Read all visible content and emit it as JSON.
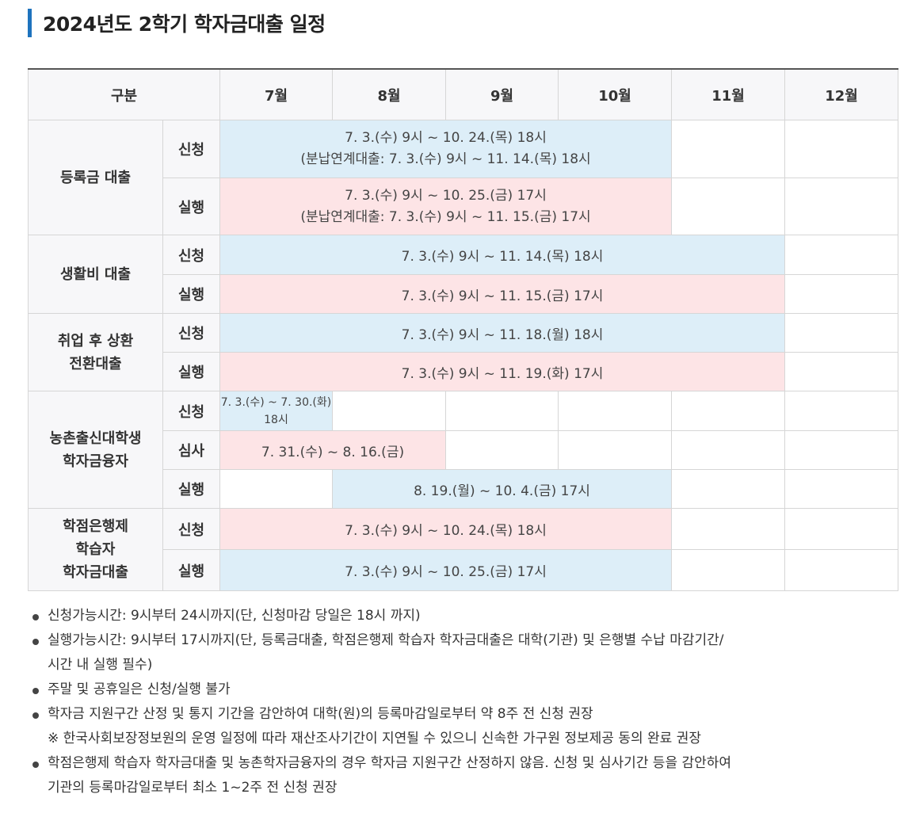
{
  "title": "2024년도 2학기 학자금대출 일정",
  "table": {
    "header": {
      "category": "구분",
      "months": [
        "7월",
        "8월",
        "9월",
        "10월",
        "11월",
        "12월"
      ]
    },
    "groups": [
      {
        "name_lines": [
          "등록금 대출"
        ],
        "rows": [
          {
            "type": "신청",
            "lines": [
              "7. 3.(수) 9시 ~ 10. 24.(목) 18시",
              "(분납연계대출: 7. 3.(수) 9시 ~ 11. 14.(목) 18시"
            ]
          },
          {
            "type": "실행",
            "lines": [
              "7. 3.(수) 9시 ~ 10. 25.(금) 17시",
              "(분납연계대출: 7. 3.(수) 9시 ~ 11. 15.(금) 17시"
            ]
          }
        ]
      },
      {
        "name_lines": [
          "생활비 대출"
        ],
        "rows": [
          {
            "type": "신청",
            "lines": [
              "7. 3.(수) 9시 ~ 11. 14.(목) 18시"
            ]
          },
          {
            "type": "실행",
            "lines": [
              "7. 3.(수) 9시 ~ 11. 15.(금) 17시"
            ]
          }
        ]
      },
      {
        "name_lines": [
          "취업 후 상환",
          "전환대출"
        ],
        "rows": [
          {
            "type": "신청",
            "lines": [
              "7. 3.(수) 9시 ~ 11. 18.(월) 18시"
            ]
          },
          {
            "type": "실행",
            "lines": [
              "7. 3.(수) 9시 ~ 11. 19.(화) 17시"
            ]
          }
        ]
      },
      {
        "name_lines": [
          "농촌출신대학생",
          "학자금융자"
        ],
        "rows": [
          {
            "type": "신청",
            "lines": [
              "7. 3.(수) ~ 7. 30.(화)",
              "18시"
            ]
          },
          {
            "type": "심사",
            "lines": [
              "7. 31.(수) ~ 8. 16.(금)"
            ]
          },
          {
            "type": "실행",
            "lines": [
              "8. 19.(월) ~ 10. 4.(금) 17시"
            ]
          }
        ]
      },
      {
        "name_lines": [
          "학점은행제",
          "학습자",
          "학자금대출"
        ],
        "rows": [
          {
            "type": "신청",
            "lines": [
              "7. 3.(수) 9시 ~ 10. 24.(목) 18시"
            ]
          },
          {
            "type": "실행",
            "lines": [
              "7. 3.(수) 9시 ~ 10. 25.(금) 17시"
            ]
          }
        ]
      }
    ]
  },
  "notes": [
    "신청가능시간: 9시부터 24시까지(단, 신청마감 당일은 18시 까지)",
    "실행가능시간: 9시부터 17시까지(단, 등록금대출, 학점은행제 학습자 학자금대출은 대학(기관) 및 은행별 수납 마감기간/",
    "시간 내 실행 필수)",
    "주말 및 공휴일은 신청/실행 불가",
    "학자금 지원구간 산정 및 통지 기간을 감안하여 대학(원)의 등록마감일로부터 약 8주 전 신청 권장",
    "※ 한국사회보장정보원의 운영 일정에 따라 재산조사기간이 지연될 수 있으니 신속한 가구원 정보제공 동의 완료 권장",
    "학점은행제 학습자 학자금대출 및 농촌학자금융자의 경우 학자금 지원구간 산정하지 않음. 신청 및 심사기간 등을 감안하여",
    "기관의 등록마감일로부터 최소 1~2주 전 신청 권장"
  ],
  "colors": {
    "accent_bar": "#1e73be",
    "apply_cell": "#ddeef8",
    "execute_cell": "#fde4e6"
  }
}
